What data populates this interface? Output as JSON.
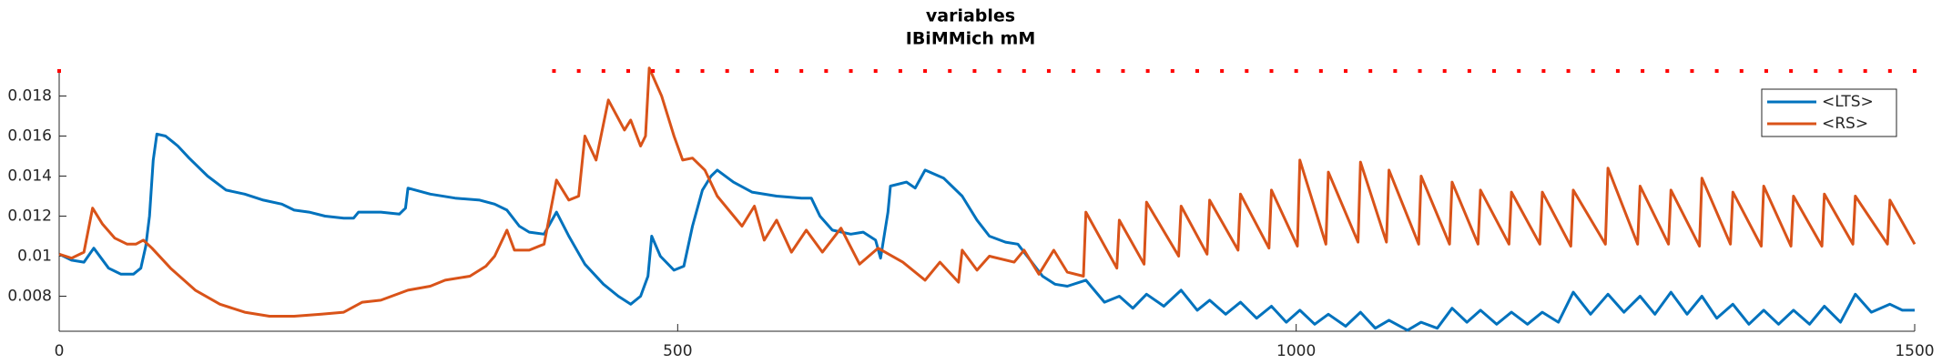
{
  "chart_data": {
    "type": "line",
    "title": "variables",
    "subtitle": "IBiMMich mM",
    "xlim": [
      0,
      1500
    ],
    "xticks": [
      0,
      500,
      1000,
      1500
    ],
    "ylim": [
      0.00625,
      0.01925
    ],
    "yticks": [
      0.008,
      0.01,
      0.012,
      0.014,
      0.016,
      0.018
    ],
    "legend": "top-right",
    "markers": {
      "color": "#ff0000",
      "x": [
        0,
        400,
        420,
        440,
        460,
        480,
        500,
        520,
        540,
        560,
        580,
        600,
        620,
        640,
        660,
        680,
        700,
        720,
        740,
        760,
        780,
        800,
        820,
        840,
        860,
        880,
        900,
        920,
        940,
        960,
        980,
        1000,
        1020,
        1040,
        1060,
        1080,
        1100,
        1120,
        1140,
        1160,
        1180,
        1200,
        1220,
        1240,
        1260,
        1280,
        1300,
        1320,
        1340,
        1360,
        1380,
        1400,
        1420,
        1440,
        1460,
        1480,
        1500
      ]
    },
    "series": [
      {
        "name": "<LTS>",
        "color": "#0072bd",
        "x": [
          0,
          10,
          20,
          28,
          40,
          50,
          60,
          66,
          70,
          73,
          76,
          79,
          86,
          92,
          96,
          105,
          120,
          135,
          150,
          165,
          180,
          190,
          202,
          215,
          230,
          238,
          242,
          260,
          275,
          280,
          282,
          300,
          320,
          340,
          352,
          362,
          372,
          380,
          392,
          402,
          412,
          425,
          440,
          452,
          462,
          470,
          476,
          479,
          486,
          497,
          505,
          512,
          520,
          527,
          532,
          545,
          560,
          580,
          600,
          608,
          615,
          625,
          640,
          650,
          660,
          664,
          670,
          672,
          685,
          692,
          700,
          715,
          730,
          742,
          752,
          765,
          775,
          785,
          795,
          805,
          815,
          830,
          845,
          857,
          868,
          879,
          893,
          907,
          920,
          930,
          943,
          955,
          968,
          980,
          992,
          1003,
          1015,
          1026,
          1040,
          1052,
          1064,
          1075,
          1090,
          1101,
          1114,
          1126,
          1138,
          1149,
          1162,
          1174,
          1187,
          1199,
          1212,
          1224,
          1238,
          1252,
          1265,
          1278,
          1290,
          1303,
          1316,
          1328,
          1340,
          1353,
          1366,
          1378,
          1390,
          1402,
          1415,
          1427,
          1440,
          1452,
          1465,
          1480,
          1490,
          1500
        ],
        "values": [
          0.0101,
          0.0098,
          0.0097,
          0.0104,
          0.0094,
          0.0091,
          0.0091,
          0.0094,
          0.0105,
          0.012,
          0.0148,
          0.0161,
          0.016,
          0.0157,
          0.0155,
          0.0149,
          0.014,
          0.0133,
          0.0131,
          0.0128,
          0.0126,
          0.0123,
          0.0122,
          0.012,
          0.0119,
          0.0119,
          0.0122,
          0.0122,
          0.0121,
          0.0124,
          0.0134,
          0.0131,
          0.0129,
          0.0128,
          0.0126,
          0.0123,
          0.0115,
          0.0112,
          0.0111,
          0.0122,
          0.011,
          0.0096,
          0.0086,
          0.008,
          0.0076,
          0.008,
          0.009,
          0.011,
          0.01,
          0.0093,
          0.0095,
          0.0115,
          0.0133,
          0.014,
          0.0143,
          0.0137,
          0.0132,
          0.013,
          0.0129,
          0.0129,
          0.012,
          0.0113,
          0.0111,
          0.0112,
          0.0108,
          0.0099,
          0.0122,
          0.0135,
          0.0137,
          0.0134,
          0.0143,
          0.0139,
          0.013,
          0.0118,
          0.011,
          0.0107,
          0.0106,
          0.0098,
          0.009,
          0.0086,
          0.0085,
          0.0088,
          0.0077,
          0.008,
          0.0074,
          0.0081,
          0.0075,
          0.0083,
          0.0073,
          0.0078,
          0.0071,
          0.0077,
          0.0069,
          0.0075,
          0.0067,
          0.0073,
          0.0066,
          0.0071,
          0.0065,
          0.0072,
          0.0064,
          0.0068,
          0.0063,
          0.0067,
          0.0064,
          0.0074,
          0.0067,
          0.0073,
          0.0066,
          0.0072,
          0.0066,
          0.0072,
          0.0067,
          0.0082,
          0.0071,
          0.0081,
          0.0072,
          0.008,
          0.0071,
          0.0082,
          0.0071,
          0.008,
          0.0069,
          0.0076,
          0.0066,
          0.0073,
          0.0066,
          0.0073,
          0.0066,
          0.0075,
          0.0067,
          0.0081,
          0.0072,
          0.0076,
          0.0073,
          0.0073
        ]
      },
      {
        "name": "<RS>",
        "color": "#d95319",
        "x": [
          0,
          10,
          20,
          27,
          35,
          45,
          55,
          62,
          68,
          75,
          90,
          110,
          130,
          150,
          170,
          190,
          212,
          230,
          245,
          260,
          282,
          300,
          312,
          332,
          345,
          352,
          362,
          368,
          380,
          392,
          402,
          412,
          420,
          425,
          434,
          444,
          457,
          462,
          470,
          474,
          477,
          487,
          497,
          504,
          512,
          522,
          532,
          552,
          562,
          570,
          580,
          592,
          604,
          617,
          632,
          647,
          662,
          682,
          700,
          712,
          727,
          730,
          742,
          752,
          772,
          780,
          792,
          804,
          815,
          828,
          830,
          855,
          857,
          877,
          879,
          905,
          907,
          928,
          930,
          953,
          955,
          978,
          980,
          1001,
          1003,
          1024,
          1026,
          1050,
          1052,
          1073,
          1075,
          1099,
          1101,
          1124,
          1126,
          1147,
          1149,
          1172,
          1174,
          1197,
          1199,
          1222,
          1224,
          1250,
          1252,
          1276,
          1278,
          1301,
          1303,
          1326,
          1328,
          1351,
          1353,
          1376,
          1378,
          1400,
          1402,
          1425,
          1427,
          1450,
          1452,
          1478,
          1480,
          1500
        ],
        "values": [
          0.0101,
          0.0099,
          0.0102,
          0.0124,
          0.0116,
          0.0109,
          0.0106,
          0.0106,
          0.0108,
          0.0104,
          0.0094,
          0.0083,
          0.0076,
          0.0072,
          0.007,
          0.007,
          0.0071,
          0.0072,
          0.0077,
          0.0078,
          0.0083,
          0.0085,
          0.0088,
          0.009,
          0.0095,
          0.01,
          0.0113,
          0.0103,
          0.0103,
          0.0106,
          0.0138,
          0.0128,
          0.013,
          0.016,
          0.0148,
          0.0178,
          0.0163,
          0.0168,
          0.0155,
          0.016,
          0.0194,
          0.018,
          0.016,
          0.0148,
          0.0149,
          0.0143,
          0.013,
          0.0115,
          0.0125,
          0.0108,
          0.0118,
          0.0102,
          0.0113,
          0.0102,
          0.0114,
          0.0096,
          0.0104,
          0.0097,
          0.0088,
          0.0097,
          0.0087,
          0.0103,
          0.0093,
          0.01,
          0.0097,
          0.0103,
          0.0091,
          0.0103,
          0.0092,
          0.009,
          0.0122,
          0.0094,
          0.0118,
          0.0096,
          0.0127,
          0.01,
          0.0125,
          0.0101,
          0.0128,
          0.0103,
          0.0131,
          0.0104,
          0.0133,
          0.0105,
          0.0148,
          0.0106,
          0.0142,
          0.0107,
          0.0147,
          0.0107,
          0.0143,
          0.0106,
          0.014,
          0.0106,
          0.0137,
          0.0106,
          0.0133,
          0.0106,
          0.0132,
          0.0106,
          0.0132,
          0.0105,
          0.0133,
          0.0106,
          0.0144,
          0.0106,
          0.0135,
          0.0106,
          0.0133,
          0.0105,
          0.0139,
          0.0106,
          0.0132,
          0.0105,
          0.0135,
          0.0105,
          0.013,
          0.0105,
          0.0131,
          0.0106,
          0.013,
          0.0106,
          0.0128,
          0.0106
        ]
      }
    ]
  }
}
